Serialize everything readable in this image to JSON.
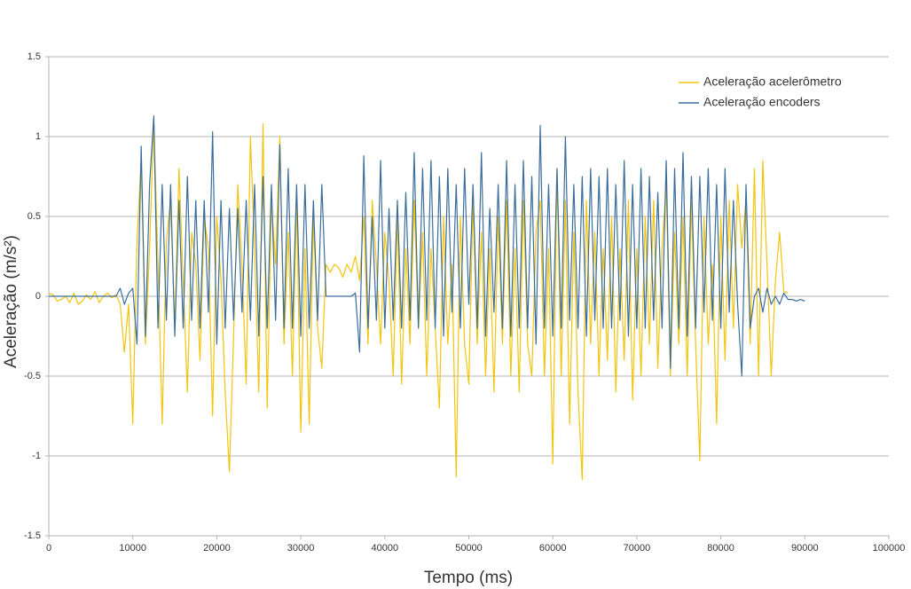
{
  "chart_data": {
    "type": "line",
    "x_label": "Tempo (ms)",
    "y_label": "Aceleração (m/s²)",
    "xlim": [
      0,
      100000
    ],
    "xticks": [
      0,
      10000,
      20000,
      30000,
      40000,
      50000,
      60000,
      70000,
      80000,
      90000,
      100000
    ],
    "ylim": [
      -1.5,
      1.5
    ],
    "yticks": [
      -1.5,
      -1,
      -0.5,
      0,
      0.5,
      1,
      1.5
    ],
    "grid": true,
    "legend": "top-right",
    "x": [
      0,
      500,
      1000,
      1500,
      2000,
      2500,
      3000,
      3500,
      4000,
      4500,
      5000,
      5500,
      6000,
      6500,
      7000,
      7500,
      8000,
      8500,
      9000,
      9500,
      10000,
      10500,
      11000,
      11500,
      12000,
      12500,
      13000,
      13500,
      14000,
      14500,
      15000,
      15500,
      16000,
      16500,
      17000,
      17500,
      18000,
      18500,
      19000,
      19500,
      20000,
      20500,
      21000,
      21500,
      22000,
      22500,
      23000,
      23500,
      24000,
      24500,
      25000,
      25500,
      26000,
      26500,
      27000,
      27500,
      28000,
      28500,
      29000,
      29500,
      30000,
      30500,
      31000,
      31500,
      32000,
      32500,
      33000,
      33500,
      34000,
      34500,
      35000,
      35500,
      36000,
      36500,
      37000,
      37500,
      38000,
      38500,
      39000,
      39500,
      40000,
      40500,
      41000,
      41500,
      42000,
      42500,
      43000,
      43500,
      44000,
      44500,
      45000,
      45500,
      46000,
      46500,
      47000,
      47500,
      48000,
      48500,
      49000,
      49500,
      50000,
      50500,
      51000,
      51500,
      52000,
      52500,
      53000,
      53500,
      54000,
      54500,
      55000,
      55500,
      56000,
      56500,
      57000,
      57500,
      58000,
      58500,
      59000,
      59500,
      60000,
      60500,
      61000,
      61500,
      62000,
      62500,
      63000,
      63500,
      64000,
      64500,
      65000,
      65500,
      66000,
      66500,
      67000,
      67500,
      68000,
      68500,
      69000,
      69500,
      70000,
      70500,
      71000,
      71500,
      72000,
      72500,
      73000,
      73500,
      74000,
      74500,
      75000,
      75500,
      76000,
      76500,
      77000,
      77500,
      78000,
      78500,
      79000,
      79500,
      80000,
      80500,
      81000,
      81500,
      82000,
      82500,
      83000,
      83500,
      84000,
      84500,
      85000,
      85500,
      86000,
      86500,
      87000,
      87500,
      88000,
      88500,
      89000,
      89500,
      90000
    ],
    "series": [
      {
        "name": "Aceleração acelerômetro",
        "color": "#f2c40c",
        "values": [
          0.02,
          0.01,
          -0.03,
          -0.02,
          0.0,
          -0.04,
          0.02,
          -0.05,
          -0.03,
          0.01,
          -0.02,
          0.03,
          -0.04,
          0.0,
          0.02,
          -0.01,
          0.01,
          -0.05,
          -0.35,
          -0.05,
          -0.8,
          0.35,
          0.85,
          -0.3,
          0.3,
          1.1,
          0.2,
          -0.8,
          0.35,
          0.6,
          -0.2,
          0.8,
          0.1,
          -0.6,
          0.4,
          0.2,
          -0.4,
          0.5,
          0.3,
          -0.75,
          0.5,
          0.1,
          -0.6,
          -1.1,
          -0.25,
          0.7,
          0.2,
          -0.55,
          1.0,
          0.3,
          -0.6,
          1.08,
          -0.7,
          0.6,
          0.2,
          1.0,
          -0.3,
          0.4,
          -0.5,
          0.6,
          -0.85,
          0.3,
          -0.8,
          0.5,
          -0.2,
          -0.45,
          0.2,
          0.15,
          0.2,
          0.18,
          0.12,
          0.2,
          0.15,
          0.25,
          0.1,
          0.5,
          -0.3,
          0.6,
          0.2,
          -0.3,
          0.4,
          0.1,
          -0.5,
          0.5,
          -0.55,
          0.3,
          -0.3,
          0.6,
          -0.2,
          0.4,
          -0.5,
          0.3,
          -0.2,
          -0.7,
          0.5,
          -0.3,
          0.2,
          -1.13,
          0.5,
          -0.3,
          -0.55,
          0.6,
          -0.3,
          0.4,
          -0.5,
          0.3,
          -0.6,
          0.5,
          -0.3,
          0.6,
          -0.5,
          0.3,
          -0.6,
          0.6,
          -0.3,
          -0.5,
          0.4,
          0.6,
          -0.5,
          0.3,
          -1.05,
          0.8,
          -0.5,
          0.6,
          -0.8,
          0.4,
          -0.6,
          -1.15,
          0.6,
          -0.3,
          0.4,
          -0.5,
          0.3,
          -0.4,
          0.5,
          -0.6,
          0.3,
          -0.4,
          0.6,
          -0.65,
          0.3,
          -0.5,
          0.5,
          -0.3,
          0.6,
          -0.45,
          0.3,
          0.7,
          -0.5,
          0.4,
          -0.3,
          0.5,
          -0.5,
          0.6,
          -0.3,
          -1.03,
          0.5,
          -0.3,
          0.2,
          -0.8,
          0.5,
          -0.4,
          0.6,
          -0.2,
          0.7,
          0.3,
          0.6,
          -0.3,
          0.8,
          -0.5,
          0.85,
          0.2,
          -0.5,
          0.1,
          0.4,
          0.03,
          0.02,
          null,
          null,
          null,
          null
        ]
      },
      {
        "name": "Aceleração encoders",
        "color": "#3a6d9c",
        "values": [
          0,
          0,
          0,
          0,
          0,
          0,
          0,
          0,
          0,
          0,
          0,
          0,
          0,
          0,
          0,
          0,
          0,
          0.05,
          -0.05,
          0.02,
          0.05,
          -0.3,
          0.94,
          -0.25,
          0.7,
          1.13,
          -0.2,
          0.7,
          -0.15,
          0.7,
          -0.25,
          0.6,
          -0.2,
          0.75,
          -0.15,
          0.6,
          -0.2,
          0.6,
          -0.1,
          1.03,
          -0.3,
          0.6,
          -0.2,
          0.55,
          -0.15,
          0.55,
          -0.1,
          0.6,
          -0.15,
          0.7,
          -0.25,
          0.75,
          -0.2,
          0.7,
          -0.15,
          0.95,
          -0.2,
          0.8,
          -0.2,
          0.7,
          -0.25,
          0.7,
          -0.2,
          0.6,
          -0.15,
          0.7,
          0,
          0,
          0,
          0,
          0,
          0,
          0,
          0.02,
          -0.35,
          0.88,
          -0.2,
          0.5,
          -0.15,
          0.85,
          -0.2,
          0.55,
          -0.15,
          0.6,
          -0.2,
          0.65,
          -0.15,
          0.9,
          -0.2,
          0.8,
          -0.15,
          0.85,
          -0.2,
          0.75,
          -0.25,
          0.8,
          -0.1,
          0.7,
          -0.2,
          0.8,
          -0.05,
          0.7,
          -0.2,
          0.9,
          -0.25,
          0.55,
          -0.1,
          0.7,
          -0.2,
          0.85,
          -0.25,
          0.7,
          -0.2,
          0.85,
          -0.2,
          0.75,
          -0.3,
          1.07,
          -0.2,
          0.7,
          -0.25,
          0.8,
          -0.2,
          1.0,
          -0.15,
          0.7,
          -0.2,
          0.75,
          -0.25,
          0.8,
          -0.15,
          0.75,
          -0.2,
          0.8,
          -0.2,
          0.7,
          -0.15,
          0.85,
          -0.25,
          0.7,
          -0.2,
          0.8,
          -0.2,
          0.75,
          -0.15,
          0.65,
          -0.2,
          0.85,
          -0.45,
          0.8,
          -0.2,
          0.9,
          -0.25,
          0.75,
          -0.2,
          0.75,
          -0.1,
          0.8,
          -0.15,
          0.7,
          -0.2,
          0.8,
          -0.1,
          0.6,
          -0.05,
          -0.5,
          0.7,
          -0.2,
          0.0,
          0.05,
          -0.1,
          0.05,
          -0.05,
          0.0,
          -0.05,
          0.02,
          -0.02,
          -0.02,
          -0.03,
          -0.02,
          -0.03
        ]
      }
    ]
  }
}
